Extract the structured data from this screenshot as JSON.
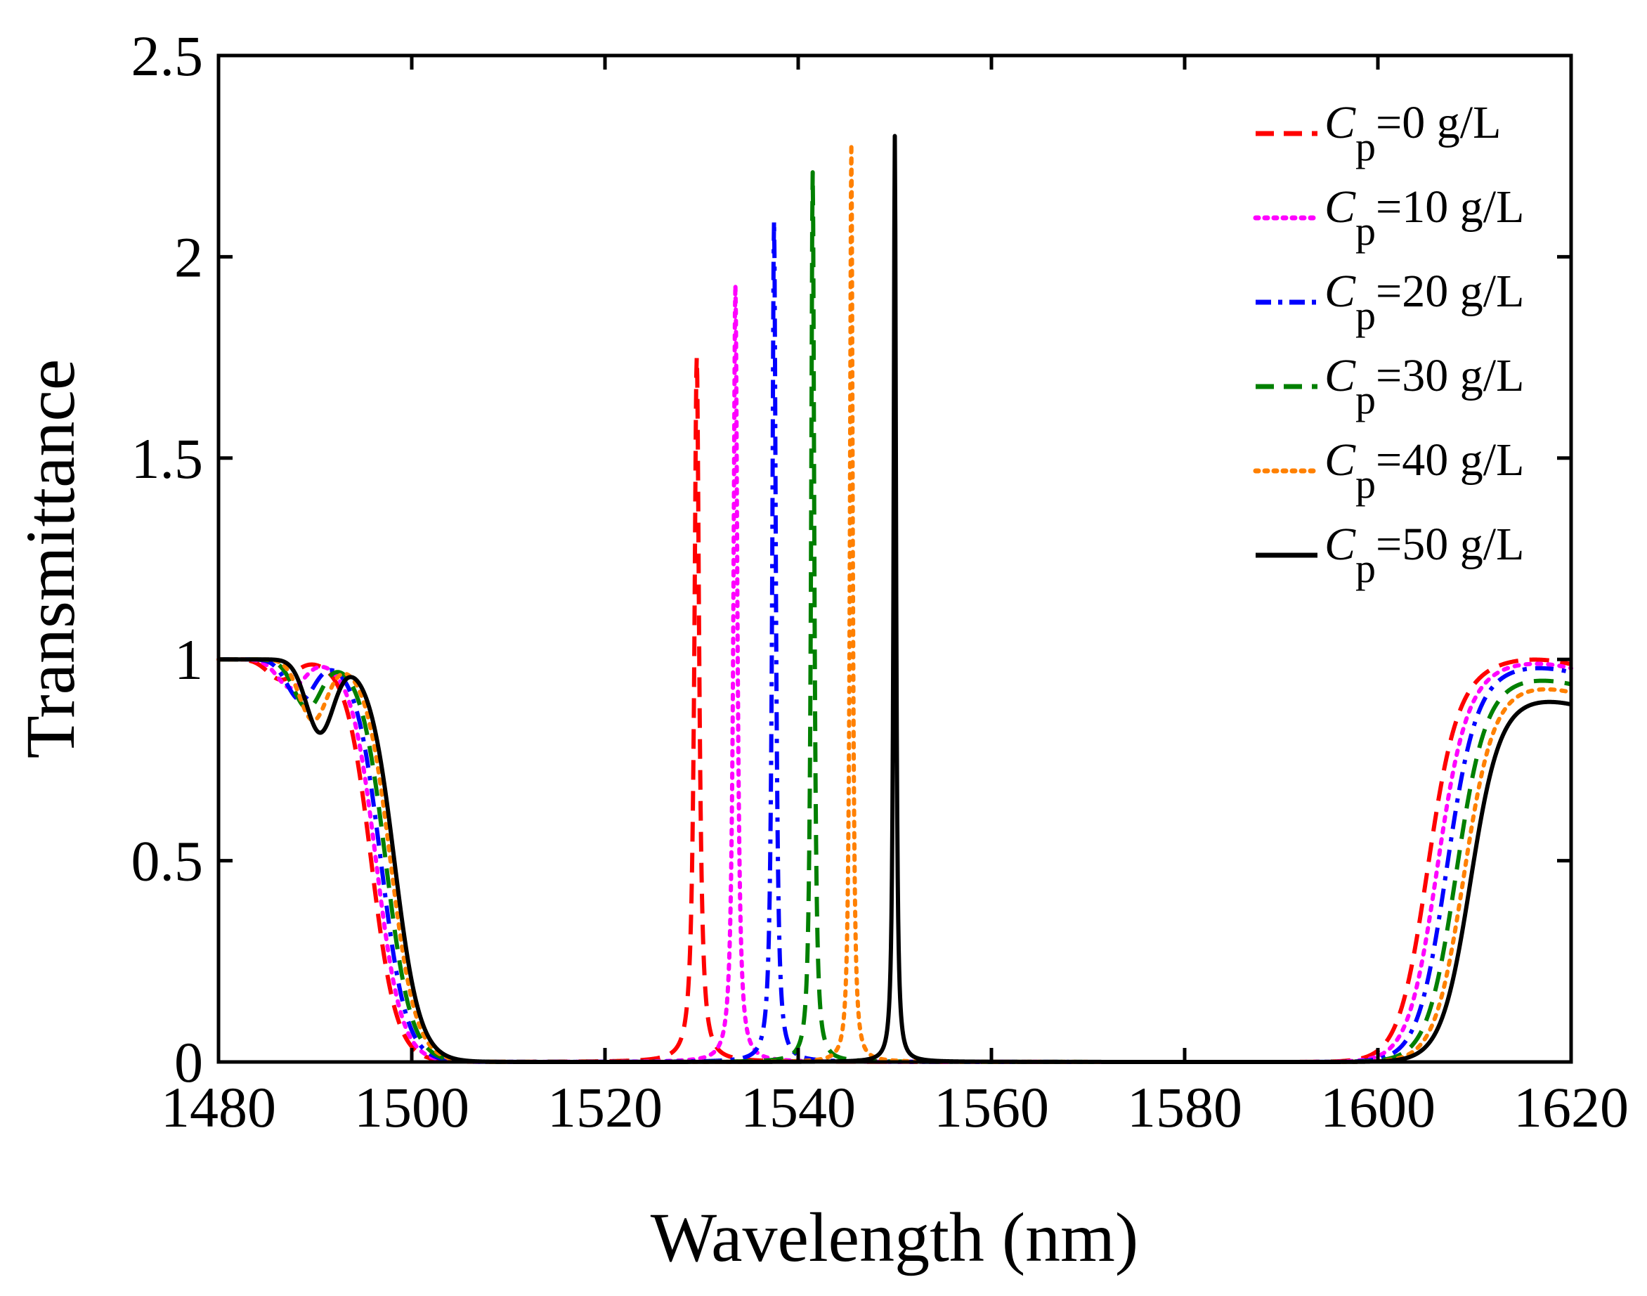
{
  "chart_data": {
    "type": "line",
    "title": "",
    "xlabel": "Wavelength (nm)",
    "ylabel": "Transmittance",
    "xlim": [
      1480,
      1620
    ],
    "ylim": [
      0,
      2.5
    ],
    "xticks": [
      "1480",
      "1500",
      "1520",
      "1540",
      "1560",
      "1580",
      "1600",
      "1620"
    ],
    "yticks": [
      "0",
      "0.5",
      "1",
      "1.5",
      "2",
      "2.5"
    ],
    "grid": false,
    "legend_position": "top-right",
    "series": [
      {
        "name": "Cp=0 g/L",
        "legend": {
          "symbol": "C",
          "subscript": "p",
          "rest": "=0 g/L"
        },
        "color": "#ff0000",
        "dash": "dashed",
        "peak": {
          "x": 1529.5,
          "y": 1.75,
          "width": 0.6
        },
        "left_band": {
          "dips": [
            {
              "x": 1486.5,
              "y": 0.95
            }
          ],
          "edge_x": 1495.8
        },
        "right_band": {
          "edge_x": 1605.0,
          "plateau": 1.0
        }
      },
      {
        "name": "Cp=10 g/L",
        "legend": {
          "symbol": "C",
          "subscript": "p",
          "rest": "=10 g/L"
        },
        "color": "#ff00ff",
        "dash": "dotted",
        "peak": {
          "x": 1533.5,
          "y": 1.93,
          "width": 0.5
        },
        "left_band": {
          "dips": [
            {
              "x": 1487.5,
              "y": 0.93
            }
          ],
          "edge_x": 1496.3
        },
        "right_band": {
          "edge_x": 1606.0,
          "plateau": 0.99
        }
      },
      {
        "name": "Cp=20 g/L",
        "legend": {
          "symbol": "C",
          "subscript": "p",
          "rest": "=20 g/L"
        },
        "color": "#0000ff",
        "dash": "dashdot",
        "peak": {
          "x": 1537.5,
          "y": 2.09,
          "width": 0.45
        },
        "left_band": {
          "dips": [
            {
              "x": 1488.5,
              "y": 0.9
            }
          ],
          "edge_x": 1496.8
        },
        "right_band": {
          "edge_x": 1607.0,
          "plateau": 0.98
        }
      },
      {
        "name": "Cp=30 g/L",
        "legend": {
          "symbol": "C",
          "subscript": "p",
          "rest": "=30 g/L"
        },
        "color": "#008000",
        "dash": "dashed",
        "peak": {
          "x": 1541.5,
          "y": 2.21,
          "width": 0.4
        },
        "left_band": {
          "dips": [
            {
              "x": 1489.2,
              "y": 0.88
            }
          ],
          "edge_x": 1497.3
        },
        "right_band": {
          "edge_x": 1608.0,
          "plateau": 0.95
        }
      },
      {
        "name": "Cp=40 g/L",
        "legend": {
          "symbol": "C",
          "subscript": "p",
          "rest": "=40 g/L"
        },
        "color": "#ff8000",
        "dash": "dotted",
        "peak": {
          "x": 1545.5,
          "y": 2.28,
          "width": 0.35
        },
        "left_band": {
          "dips": [
            {
              "x": 1489.8,
              "y": 0.85
            }
          ],
          "edge_x": 1497.8
        },
        "right_band": {
          "edge_x": 1608.8,
          "plateau": 0.93
        }
      },
      {
        "name": "Cp=50 g/L",
        "legend": {
          "symbol": "C",
          "subscript": "p",
          "rest": "=50 g/L"
        },
        "color": "#000000",
        "dash": "solid",
        "peak": {
          "x": 1550.0,
          "y": 2.3,
          "width": 0.3
        },
        "left_band": {
          "dips": [
            {
              "x": 1490.5,
              "y": 0.82
            }
          ],
          "edge_x": 1498.2
        },
        "right_band": {
          "edge_x": 1609.5,
          "plateau": 0.9
        }
      }
    ]
  }
}
